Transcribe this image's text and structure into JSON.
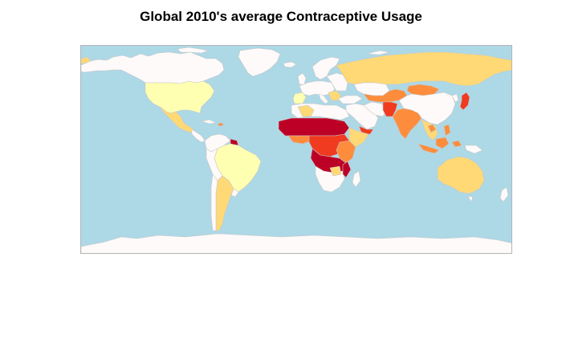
{
  "title": "Global 2010's average Contraceptive Usage",
  "colors": {
    "ocean": "#add8e6",
    "no_data": "#fffafa",
    "border": "#c8c8c8",
    "level_1": "#ffffb2",
    "level_2": "#fed976",
    "level_3": "#fd8d3c",
    "level_4": "#f03b20",
    "level_5": "#bd0026"
  },
  "legend": "none"
}
